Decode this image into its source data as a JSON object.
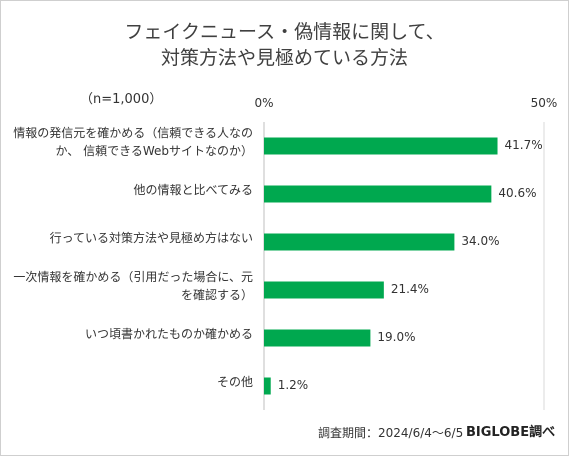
{
  "chart_data": {
    "type": "bar",
    "orientation": "horizontal",
    "title_lines": [
      "フェイクニュース・偽情報に関して、",
      "対策方法や見極めている方法"
    ],
    "sample_note": "（n=1,000）",
    "categories": [
      "情報の発信元を確かめる（信頼できる人なの\nか、 信頼できるWebサイトなのか）",
      "他の情報と比べてみる",
      "行っている対策方法や見極め方はない",
      "一次情報を確かめる（引用だった場合に、元\nを確認する）",
      "いつ頃書かれたものか確かめる",
      "その他"
    ],
    "values": [
      41.7,
      40.6,
      34.0,
      21.4,
      19.0,
      1.2
    ],
    "value_labels": [
      "41.7%",
      "40.6%",
      "34.0%",
      "21.4%",
      "19.0%",
      "1.2%"
    ],
    "xlim": [
      0,
      50
    ],
    "x_tick_labels": [
      "0%",
      "50%"
    ],
    "bar_color": "#00a84f",
    "grid": false
  },
  "footer": {
    "period": "調査期間：2024/6/4～6/5",
    "brand": "BIGLOBE調べ"
  }
}
